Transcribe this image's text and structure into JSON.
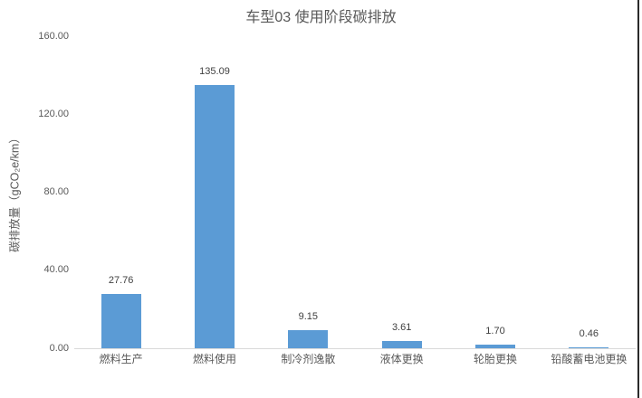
{
  "chart_data": {
    "type": "bar",
    "title": "车型03 使用阶段碳排放",
    "categories": [
      "燃料生产",
      "燃料使用",
      "制冷剂逸散",
      "液体更换",
      "轮胎更换",
      "铅酸蓄电池更换"
    ],
    "values": [
      27.76,
      135.09,
      9.15,
      3.61,
      1.7,
      0.46
    ],
    "data_labels": [
      "27.76",
      "135.09",
      "9.15",
      "3.61",
      "1.70",
      "0.46"
    ],
    "xlabel": "",
    "ylabel": "碳排放量（gCO₂e/km）",
    "ylim": [
      0,
      160
    ],
    "y_ticks": [
      {
        "value": 0,
        "label": "0.00"
      },
      {
        "value": 40,
        "label": "40.00"
      },
      {
        "value": 80,
        "label": "80.00"
      },
      {
        "value": 120,
        "label": "120.00"
      },
      {
        "value": 160,
        "label": "160.00"
      }
    ],
    "grid": false,
    "legend": "none",
    "colors": {
      "bar": "#5B9BD5",
      "axis_line": "#D9D9D9",
      "title_text": "#595959",
      "tick_text": "#595959",
      "data_label_text": "#404040",
      "window_border": "#2B2B2B"
    }
  }
}
